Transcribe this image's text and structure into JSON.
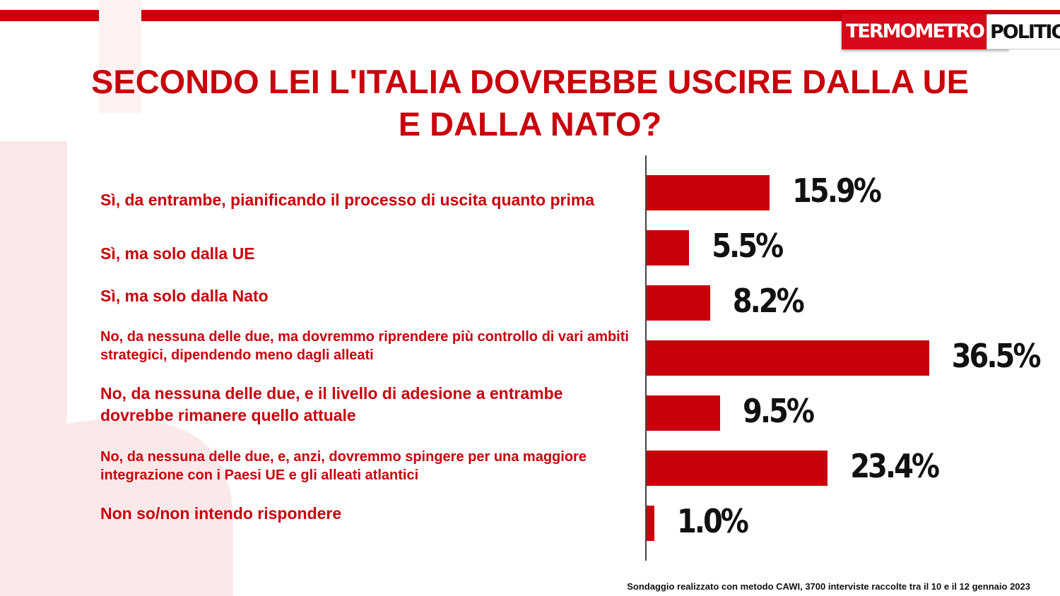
{
  "header": {
    "logo_part1": "TERMOMETRO",
    "logo_part2": "POLITICO"
  },
  "chart_data": {
    "type": "bar",
    "orientation": "horizontal",
    "title": "SECONDO LEI L'ITALIA DOVREBBE USCIRE DALLA UE E DALLA NATO?",
    "title_lines": [
      "SECONDO LEI L'ITALIA DOVREBBE USCIRE DALLA UE",
      "E DALLA NATO?"
    ],
    "categories": [
      "Sì, da entrambe, pianificando il processo di uscita quanto prima",
      "Sì, ma solo dalla UE",
      "Sì, ma solo dalla Nato",
      "No, da nessuna delle due, ma dovremmo riprendere più controllo di vari ambiti strategici, dipendendo meno dagli alleati",
      "No, da nessuna delle due, e il livello di adesione a entrambe dovrebbe rimanere quello attuale",
      "No, da nessuna delle due, e, anzi, dovremmo spingere per una maggiore integrazione con i Paesi UE e gli alleati atlantici",
      "Non so/non intendo rispondere"
    ],
    "values": [
      15.9,
      5.5,
      8.2,
      36.5,
      9.5,
      23.4,
      1.0
    ],
    "value_labels": [
      "15.9%",
      "5.5%",
      "8.2%",
      "36.5%",
      "9.5%",
      "23.4%",
      "1.0%"
    ],
    "unit": "%",
    "bar_color": "#c8000b",
    "label_color": "#c8000b",
    "grid": false,
    "legend": "none"
  },
  "footer": {
    "note": "Sondaggio realizzato con metodo CAWI, 3700 interviste raccolte tra il 10 e il 12 gennaio 2023"
  }
}
